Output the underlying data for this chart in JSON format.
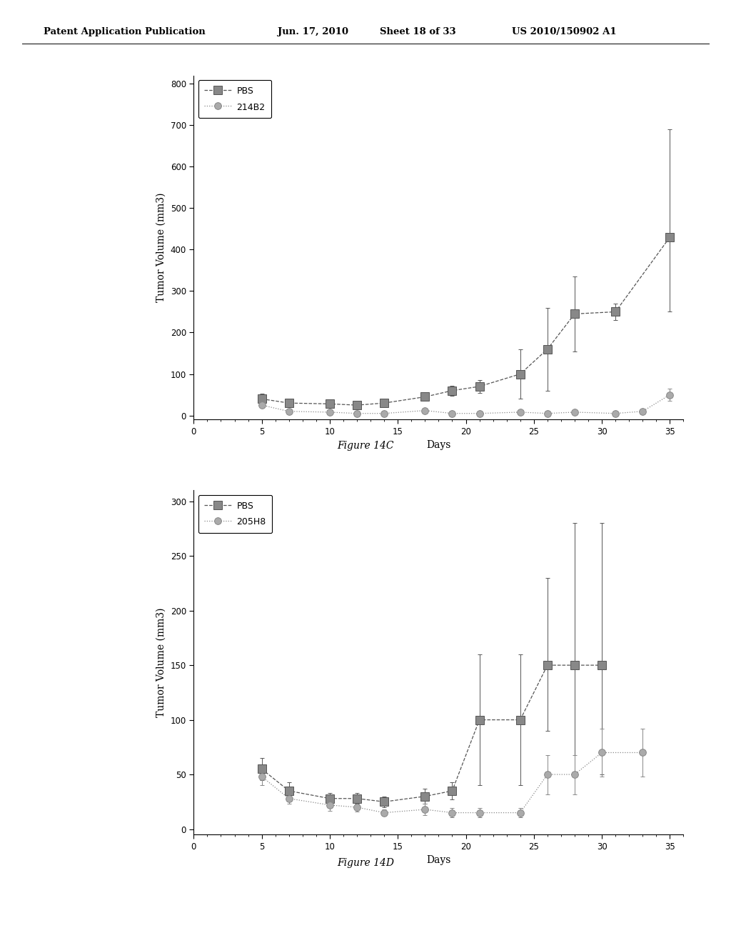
{
  "fig14c": {
    "title": "Figure 14C",
    "ylabel": "Tumor Volume (mm3)",
    "xlabel": "Days",
    "xlim": [
      0,
      36
    ],
    "ylim": [
      -10,
      820
    ],
    "yticks": [
      0,
      100,
      200,
      300,
      400,
      500,
      600,
      700,
      800
    ],
    "xticks": [
      0,
      5,
      10,
      15,
      20,
      25,
      30,
      35
    ],
    "pbs": {
      "label": "PBS",
      "x": [
        5,
        7,
        10,
        12,
        14,
        17,
        19,
        21,
        24,
        26,
        28,
        31,
        35
      ],
      "y": [
        40,
        30,
        28,
        25,
        30,
        45,
        60,
        70,
        100,
        160,
        245,
        250,
        430
      ],
      "yerr_low": [
        12,
        8,
        7,
        6,
        8,
        10,
        12,
        15,
        60,
        100,
        90,
        20,
        180
      ],
      "yerr_high": [
        12,
        8,
        7,
        6,
        8,
        10,
        12,
        15,
        60,
        100,
        90,
        20,
        260
      ]
    },
    "ab": {
      "label": "214B2",
      "x": [
        5,
        7,
        10,
        12,
        14,
        17,
        19,
        21,
        24,
        26,
        28,
        31,
        33,
        35
      ],
      "y": [
        25,
        10,
        8,
        5,
        5,
        12,
        5,
        5,
        8,
        5,
        8,
        5,
        10,
        50
      ],
      "yerr_low": [
        5,
        3,
        3,
        2,
        2,
        4,
        2,
        2,
        3,
        2,
        3,
        2,
        4,
        15
      ],
      "yerr_high": [
        5,
        3,
        3,
        2,
        2,
        4,
        2,
        2,
        3,
        2,
        3,
        2,
        4,
        15
      ]
    }
  },
  "fig14d": {
    "title": "Figure 14D",
    "ylabel": "Tumor Volume (mm3)",
    "xlabel": "Days",
    "xlim": [
      0,
      36
    ],
    "ylim": [
      -5,
      310
    ],
    "yticks": [
      0,
      50,
      100,
      150,
      200,
      250,
      300
    ],
    "xticks": [
      0,
      5,
      10,
      15,
      20,
      25,
      30,
      35
    ],
    "pbs": {
      "label": "PBS",
      "x": [
        5,
        7,
        10,
        12,
        14,
        17,
        19,
        21,
        24,
        26,
        28,
        30
      ],
      "y": [
        55,
        35,
        28,
        28,
        25,
        30,
        35,
        100,
        100,
        150,
        150,
        150
      ],
      "yerr_low": [
        10,
        8,
        5,
        5,
        5,
        7,
        8,
        60,
        60,
        60,
        100,
        100
      ],
      "yerr_high": [
        10,
        8,
        5,
        5,
        5,
        7,
        8,
        60,
        60,
        80,
        130,
        130
      ]
    },
    "ab": {
      "label": "205H8",
      "x": [
        5,
        7,
        10,
        12,
        14,
        17,
        19,
        21,
        24,
        26,
        28,
        30,
        33
      ],
      "y": [
        48,
        28,
        22,
        20,
        15,
        18,
        15,
        15,
        15,
        50,
        50,
        70,
        70
      ],
      "yerr_low": [
        8,
        5,
        5,
        4,
        3,
        5,
        4,
        4,
        4,
        18,
        18,
        22,
        22
      ],
      "yerr_high": [
        8,
        5,
        5,
        4,
        3,
        5,
        4,
        4,
        4,
        18,
        18,
        22,
        22
      ]
    }
  },
  "line_color_pbs": "#555555",
  "line_color_ab": "#888888",
  "marker_color_pbs": "#888888",
  "marker_color_ab": "#aaaaaa",
  "bg_color": "#ffffff"
}
